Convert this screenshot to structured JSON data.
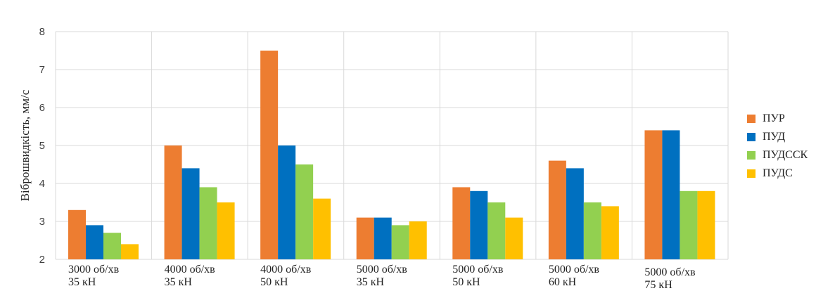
{
  "chart_data": {
    "type": "bar",
    "title": "",
    "xlabel": "",
    "ylabel": "Віброшвидкість, мм/с",
    "ylim": [
      2,
      8
    ],
    "yticks": [
      "2",
      "3",
      "4",
      "5",
      "6",
      "7",
      "8"
    ],
    "grid": true,
    "legend_position": "right",
    "categories": [
      [
        "3000 об/хв",
        "35 кН"
      ],
      [
        "4000 об/хв",
        "35 кН"
      ],
      [
        "4000 об/хв",
        "50 кН"
      ],
      [
        "5000 об/хв",
        "35 кН"
      ],
      [
        "5000 об/хв",
        "50 кН"
      ],
      [
        "5000 об/хв",
        "60 кН"
      ],
      [
        "5000 об/хв",
        "75 кН"
      ]
    ],
    "series": [
      {
        "name": "ПУР",
        "color": "#ED7D31",
        "values": [
          3.3,
          5.0,
          7.5,
          3.1,
          3.9,
          4.6,
          5.4
        ]
      },
      {
        "name": "ПУД",
        "color": "#0070C0",
        "values": [
          2.9,
          4.4,
          5.0,
          3.1,
          3.8,
          4.4,
          5.4
        ]
      },
      {
        "name": "ПУДССК",
        "color": "#92D050",
        "values": [
          2.7,
          3.9,
          4.5,
          2.9,
          3.5,
          3.5,
          3.8
        ]
      },
      {
        "name": "ПУДС",
        "color": "#FFC000",
        "values": [
          2.4,
          3.5,
          3.6,
          3.0,
          3.1,
          3.4,
          3.8
        ]
      }
    ]
  }
}
